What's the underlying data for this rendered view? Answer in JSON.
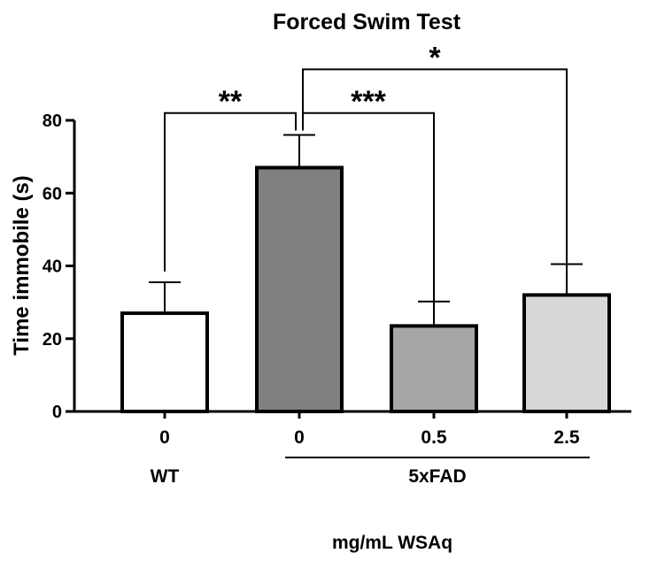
{
  "chart_data": {
    "type": "bar",
    "title": "Forced Swim Test",
    "ylabel": "Time immobile (s)",
    "xlabel": "mg/mL WSAq",
    "ylim": [
      0,
      80
    ],
    "yticks": [
      "0",
      "20",
      "40",
      "60",
      "80"
    ],
    "categories": [
      "0",
      "0",
      "0.5",
      "2.5"
    ],
    "values": [
      27,
      67,
      23.5,
      32
    ],
    "error_upper": [
      35.5,
      76,
      30.2,
      40.5
    ],
    "bar_colors": [
      "#ffffff",
      "#808080",
      "#a6a6a8",
      "#d8d8d8"
    ],
    "groups": [
      {
        "label": "WT",
        "bars": [
          0
        ]
      },
      {
        "label": "5xFAD",
        "bars": [
          1,
          2,
          3
        ]
      }
    ],
    "significance": [
      {
        "from": 1,
        "to": 0,
        "label": "**",
        "level": 82
      },
      {
        "from": 1,
        "to": 2,
        "label": "***",
        "level": 82
      },
      {
        "from": 1,
        "to": 3,
        "label": "*",
        "level": 94
      }
    ],
    "grid": false,
    "legend": "none"
  }
}
